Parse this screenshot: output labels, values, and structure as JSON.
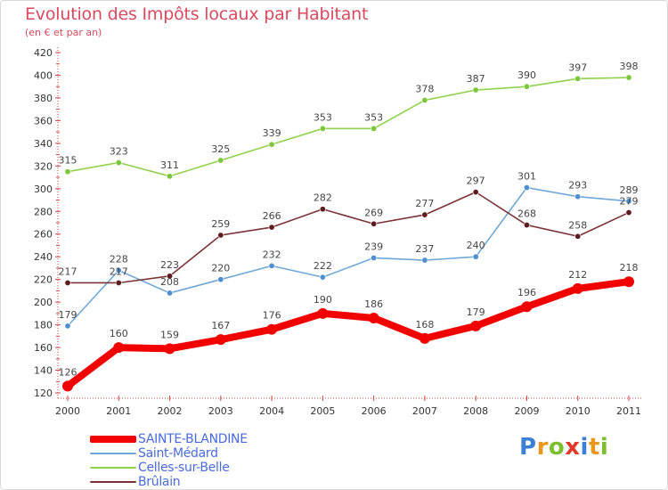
{
  "title": "Evolution des Impôts locaux par Habitant",
  "subtitle": "(en € et par an)",
  "logo": {
    "letters": [
      {
        "ch": "P",
        "color": "#3b7fd6"
      },
      {
        "ch": "r",
        "color": "#e8961e"
      },
      {
        "ch": "o",
        "color": "#7bbf2f"
      },
      {
        "ch": "x",
        "color": "#e2382a"
      },
      {
        "ch": "i",
        "color": "#3b7fd6"
      },
      {
        "ch": "t",
        "color": "#e8961e"
      },
      {
        "ch": "i",
        "color": "#7bbf2f"
      }
    ]
  },
  "chart_data": {
    "type": "line",
    "x": [
      "2000",
      "2001",
      "2002",
      "2003",
      "2004",
      "2005",
      "2006",
      "2007",
      "2008",
      "2009",
      "2010",
      "2011"
    ],
    "ylim": [
      120,
      420
    ],
    "yticks": [
      120,
      140,
      160,
      180,
      200,
      220,
      240,
      260,
      280,
      300,
      320,
      340,
      360,
      380,
      400,
      420
    ],
    "grid": false,
    "legend_position": "bottom-left",
    "series": [
      {
        "name": "Celles-sur-Belle",
        "color": "#8fd24a",
        "point_color": "#7cc63a",
        "values": [
          315,
          323,
          311,
          325,
          339,
          353,
          353,
          378,
          387,
          390,
          397,
          398
        ]
      },
      {
        "name": "Saint-Médard",
        "color": "#6fa7d6",
        "point_color": "#4f8fcf",
        "values": [
          179,
          228,
          208,
          220,
          232,
          222,
          239,
          237,
          240,
          301,
          293,
          289
        ]
      },
      {
        "name": "Brûlain",
        "color": "#7a3236",
        "point_color": "#5e1c20",
        "values": [
          217,
          217,
          223,
          259,
          266,
          282,
          269,
          277,
          297,
          268,
          258,
          279
        ]
      },
      {
        "name": "SAINTE-BLANDINE",
        "color": "#f20000",
        "point_color": "#f20000",
        "values": [
          126,
          160,
          159,
          167,
          176,
          190,
          186,
          168,
          179,
          196,
          212,
          218
        ]
      }
    ],
    "legend_order": [
      "SAINTE-BLANDINE",
      "Saint-Médard",
      "Celles-sur-Belle",
      "Brûlain"
    ]
  }
}
